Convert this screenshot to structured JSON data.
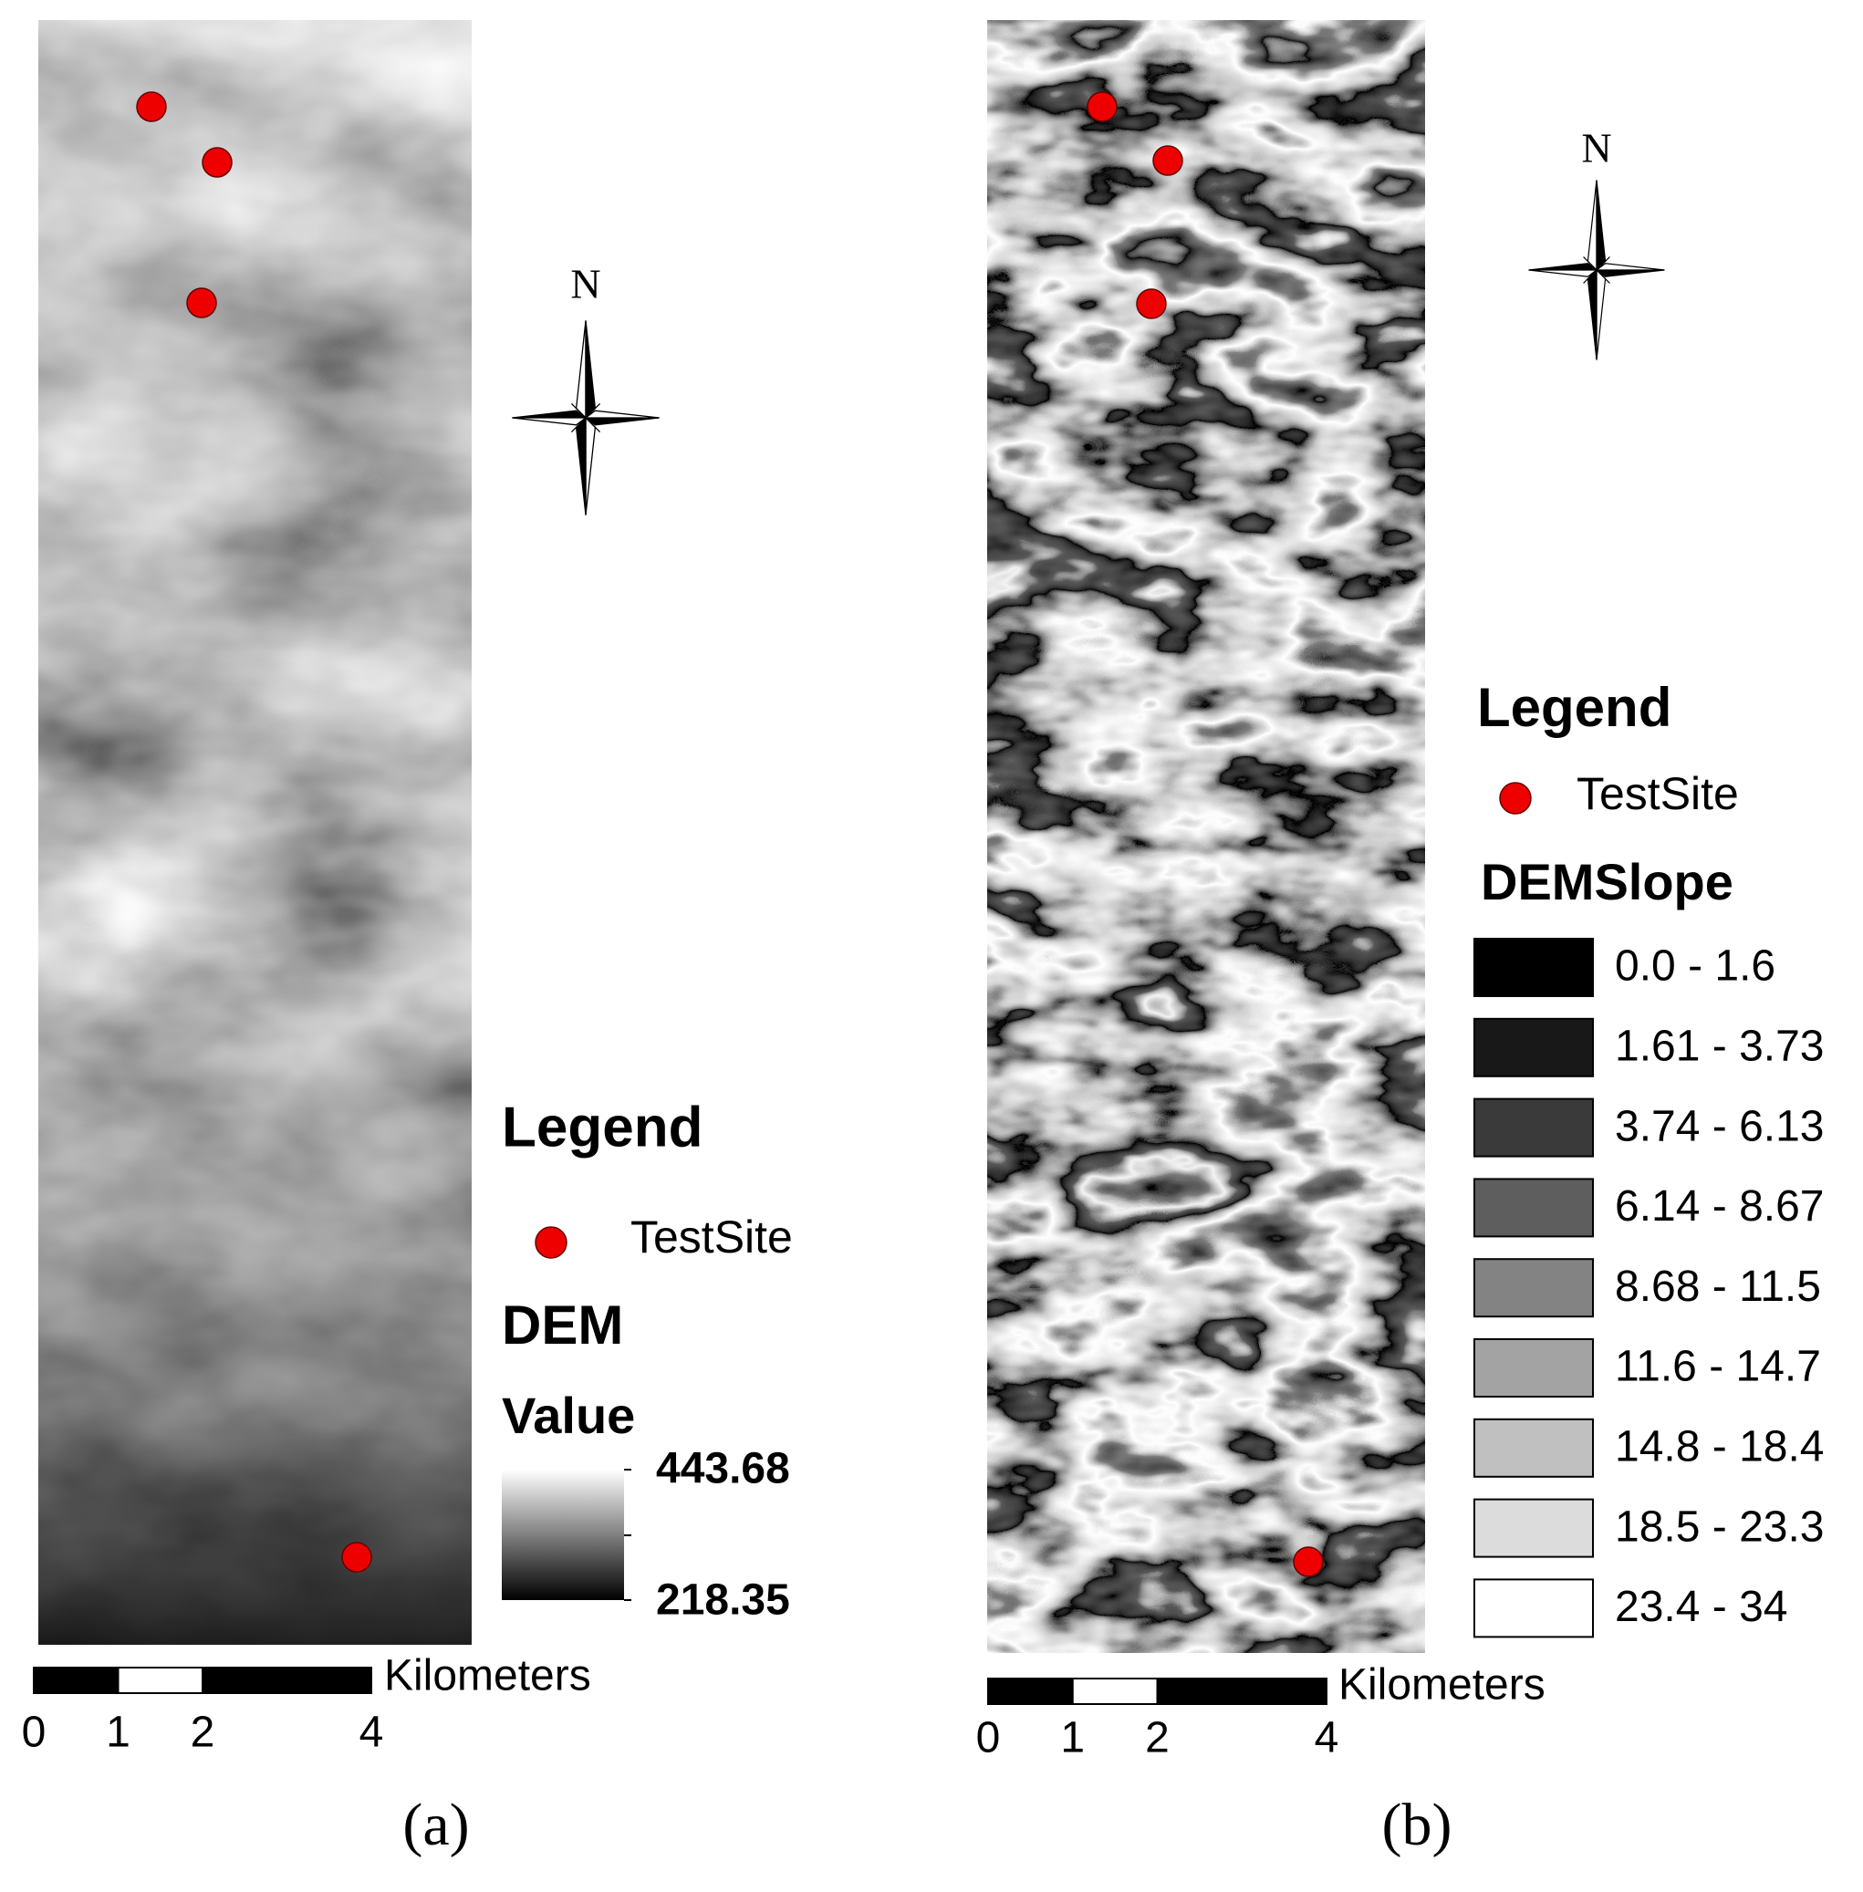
{
  "panels": [
    {
      "label": "(a)",
      "north": "N",
      "legend": {
        "title": "Legend",
        "site": "TestSite",
        "layer": "DEM",
        "field": "Value",
        "high": 443.68,
        "low": 218.35
      },
      "scale": {
        "unit": "Kilometers",
        "ticks": [
          0,
          1,
          2,
          4
        ]
      }
    },
    {
      "label": "(b)",
      "north": "N",
      "legend": {
        "title": "Legend",
        "site": "TestSite",
        "layer": "DEMSlope",
        "classes": [
          {
            "label": "0.0 - 1.6",
            "color": "#000000"
          },
          {
            "label": "1.61 - 3.73",
            "color": "#181818"
          },
          {
            "label": "3.74 - 6.13",
            "color": "#3a3a3a"
          },
          {
            "label": "6.14 - 8.67",
            "color": "#5e5e5e"
          },
          {
            "label": "8.68 - 11.5",
            "color": "#838383"
          },
          {
            "label": "11.6 - 14.7",
            "color": "#a3a3a3"
          },
          {
            "label": "14.8 - 18.4",
            "color": "#c0c0c0"
          },
          {
            "label": "18.5 - 23.3",
            "color": "#dcdcdc"
          },
          {
            "label": "23.4 - 34",
            "color": "#ffffff"
          }
        ]
      },
      "scale": {
        "unit": "Kilometers",
        "ticks": [
          0,
          1,
          2,
          4
        ]
      }
    }
  ]
}
